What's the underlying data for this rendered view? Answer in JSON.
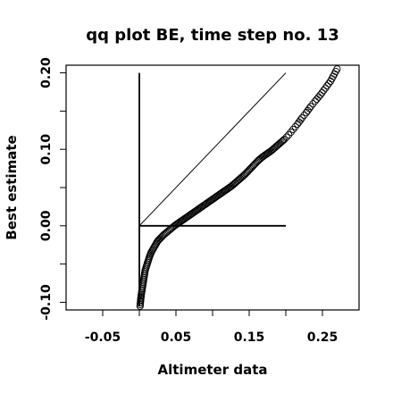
{
  "chart_data": {
    "type": "scatter",
    "title": "qq plot BE, time step no. 13",
    "xlabel": "Altimeter data",
    "ylabel": "Best estimate",
    "xlim": [
      -0.1,
      0.3
    ],
    "ylim": [
      -0.11,
      0.21
    ],
    "x_ticks": [
      -0.05,
      0.05,
      0.15,
      0.25
    ],
    "x_tick_labels": [
      "-0.05",
      "0.05",
      "0.15",
      "0.25"
    ],
    "y_ticks": [
      -0.1,
      0.0,
      0.1,
      0.2
    ],
    "y_tick_labels": [
      "-0.10",
      "0.00",
      "0.10",
      "0.20"
    ],
    "x_minor_ticks": [
      0.0,
      0.1,
      0.2
    ],
    "y_minor_ticks": [
      -0.05,
      0.05,
      0.15
    ],
    "grid": false,
    "reference_lines": [
      {
        "x": [
          0.0,
          0.2
        ],
        "y": [
          0.0,
          0.2
        ]
      },
      {
        "x": [
          0.0,
          0.2
        ],
        "y": [
          0.0,
          0.0
        ]
      },
      {
        "x": [
          0.0,
          0.0
        ],
        "y": [
          -0.105,
          0.2
        ]
      }
    ],
    "points": [
      {
        "x": 0.001,
        "y": -0.105
      },
      {
        "x": 0.002,
        "y": -0.095
      },
      {
        "x": 0.003,
        "y": -0.088
      },
      {
        "x": 0.004,
        "y": -0.082
      },
      {
        "x": 0.005,
        "y": -0.076
      },
      {
        "x": 0.006,
        "y": -0.07
      },
      {
        "x": 0.007,
        "y": -0.064
      },
      {
        "x": 0.008,
        "y": -0.058
      },
      {
        "x": 0.01,
        "y": -0.052
      },
      {
        "x": 0.012,
        "y": -0.046
      },
      {
        "x": 0.014,
        "y": -0.04
      },
      {
        "x": 0.016,
        "y": -0.035
      },
      {
        "x": 0.019,
        "y": -0.03
      },
      {
        "x": 0.022,
        "y": -0.025
      },
      {
        "x": 0.025,
        "y": -0.02
      },
      {
        "x": 0.029,
        "y": -0.016
      },
      {
        "x": 0.033,
        "y": -0.012
      },
      {
        "x": 0.038,
        "y": -0.008
      },
      {
        "x": 0.043,
        "y": -0.004
      },
      {
        "x": 0.048,
        "y": 0.0
      },
      {
        "x": 0.054,
        "y": 0.004
      },
      {
        "x": 0.06,
        "y": 0.008
      },
      {
        "x": 0.066,
        "y": 0.012
      },
      {
        "x": 0.072,
        "y": 0.016
      },
      {
        "x": 0.078,
        "y": 0.02
      },
      {
        "x": 0.084,
        "y": 0.024
      },
      {
        "x": 0.09,
        "y": 0.028
      },
      {
        "x": 0.096,
        "y": 0.032
      },
      {
        "x": 0.102,
        "y": 0.036
      },
      {
        "x": 0.108,
        "y": 0.04
      },
      {
        "x": 0.114,
        "y": 0.044
      },
      {
        "x": 0.12,
        "y": 0.048
      },
      {
        "x": 0.126,
        "y": 0.052
      },
      {
        "x": 0.132,
        "y": 0.057
      },
      {
        "x": 0.138,
        "y": 0.062
      },
      {
        "x": 0.144,
        "y": 0.067
      },
      {
        "x": 0.15,
        "y": 0.073
      },
      {
        "x": 0.156,
        "y": 0.079
      },
      {
        "x": 0.162,
        "y": 0.085
      },
      {
        "x": 0.168,
        "y": 0.09
      },
      {
        "x": 0.174,
        "y": 0.094
      },
      {
        "x": 0.18,
        "y": 0.098
      },
      {
        "x": 0.186,
        "y": 0.103
      },
      {
        "x": 0.192,
        "y": 0.108
      },
      {
        "x": 0.198,
        "y": 0.113
      },
      {
        "x": 0.204,
        "y": 0.119
      },
      {
        "x": 0.21,
        "y": 0.126
      },
      {
        "x": 0.216,
        "y": 0.133
      },
      {
        "x": 0.222,
        "y": 0.141
      },
      {
        "x": 0.228,
        "y": 0.148
      },
      {
        "x": 0.234,
        "y": 0.156
      },
      {
        "x": 0.24,
        "y": 0.163
      },
      {
        "x": 0.247,
        "y": 0.171
      },
      {
        "x": 0.254,
        "y": 0.18
      },
      {
        "x": 0.261,
        "y": 0.189
      },
      {
        "x": 0.27,
        "y": 0.205
      }
    ]
  }
}
